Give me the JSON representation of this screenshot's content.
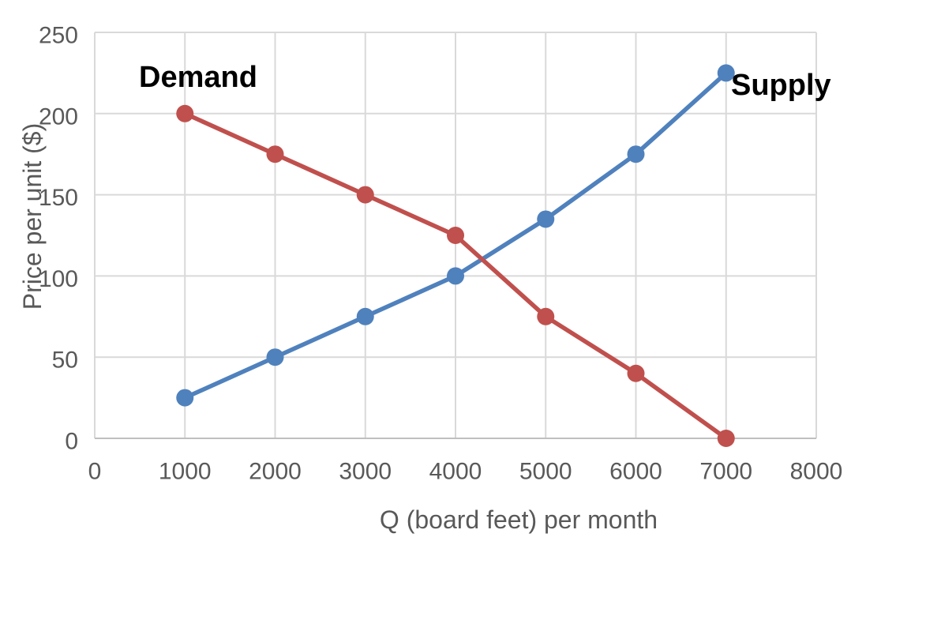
{
  "chart_data": {
    "type": "line",
    "title": "",
    "xlabel": "Q (board feet) per month",
    "ylabel": "Price per unit ($)",
    "x": [
      1000,
      2000,
      3000,
      4000,
      5000,
      6000,
      7000
    ],
    "series": [
      {
        "name": "Supply",
        "values": [
          25,
          50,
          75,
          100,
          135,
          175,
          225
        ],
        "color": "#4F81BD"
      },
      {
        "name": "Demand",
        "values": [
          200,
          175,
          150,
          125,
          75,
          40,
          0
        ],
        "color": "#C0504D"
      }
    ],
    "xlim": [
      0,
      8000
    ],
    "ylim": [
      0,
      250
    ],
    "x_ticks": [
      0,
      1000,
      2000,
      3000,
      4000,
      5000,
      6000,
      7000,
      8000
    ],
    "y_ticks": [
      0,
      50,
      100,
      150,
      200,
      250
    ],
    "grid": true,
    "legend_position": "inline-labels-near-series-endpoints",
    "styles": {
      "grid_color": "#D9D9D9",
      "axis_line_color": "#BFBFBF",
      "tick_label_color": "#595959",
      "axis_title_color": "#595959",
      "series_label_color": "#000000",
      "background_color": "#FFFFFF"
    }
  }
}
